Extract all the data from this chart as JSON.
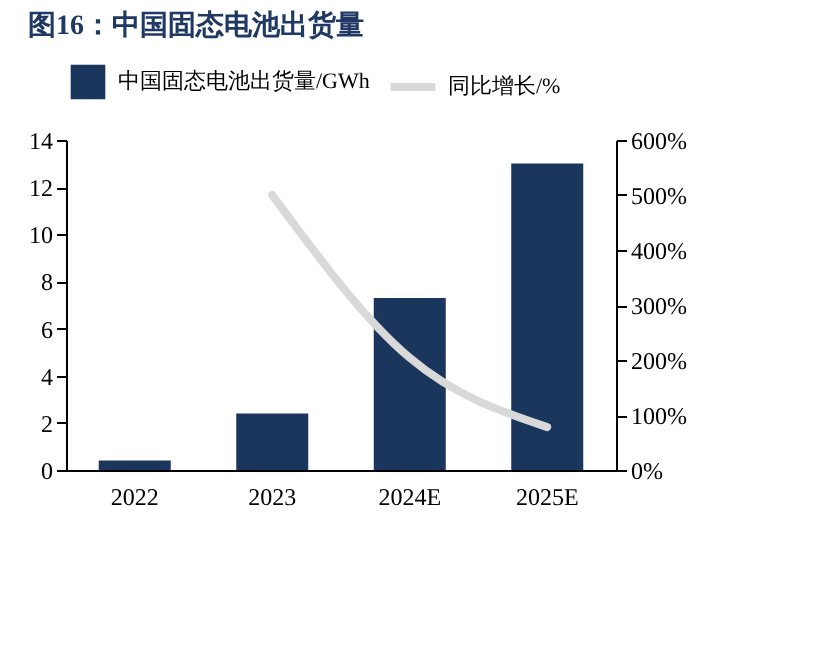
{
  "chart_data": {
    "type": "bar",
    "title": "图16：中国固态电池出货量",
    "categories": [
      "2022",
      "2023",
      "2024E",
      "2025E"
    ],
    "series": [
      {
        "name": "中国固态电池出货量/GWh",
        "color": "#1b365d",
        "values": [
          0.4,
          2.4,
          7.3,
          13.0
        ]
      },
      {
        "name": "同比增长/%",
        "type": "line",
        "axis": "y2",
        "color": "#d9d9d9",
        "values": [
          null,
          500,
          204,
          78
        ]
      }
    ],
    "ylim": [
      0,
      14
    ],
    "yticks": [
      0,
      2,
      4,
      6,
      8,
      10,
      12,
      14
    ],
    "y2lim": [
      0,
      600
    ],
    "y2ticks": [
      {
        "value": 0,
        "label": "0%"
      },
      {
        "value": 100,
        "label": "100%"
      },
      {
        "value": 200,
        "label": "200%"
      },
      {
        "value": 300,
        "label": "300%"
      },
      {
        "value": 400,
        "label": "400%"
      },
      {
        "value": 500,
        "label": "500%"
      },
      {
        "value": 600,
        "label": "600%"
      }
    ],
    "legend": "top",
    "grid": false,
    "marker": "none",
    "line_style": "solid"
  }
}
